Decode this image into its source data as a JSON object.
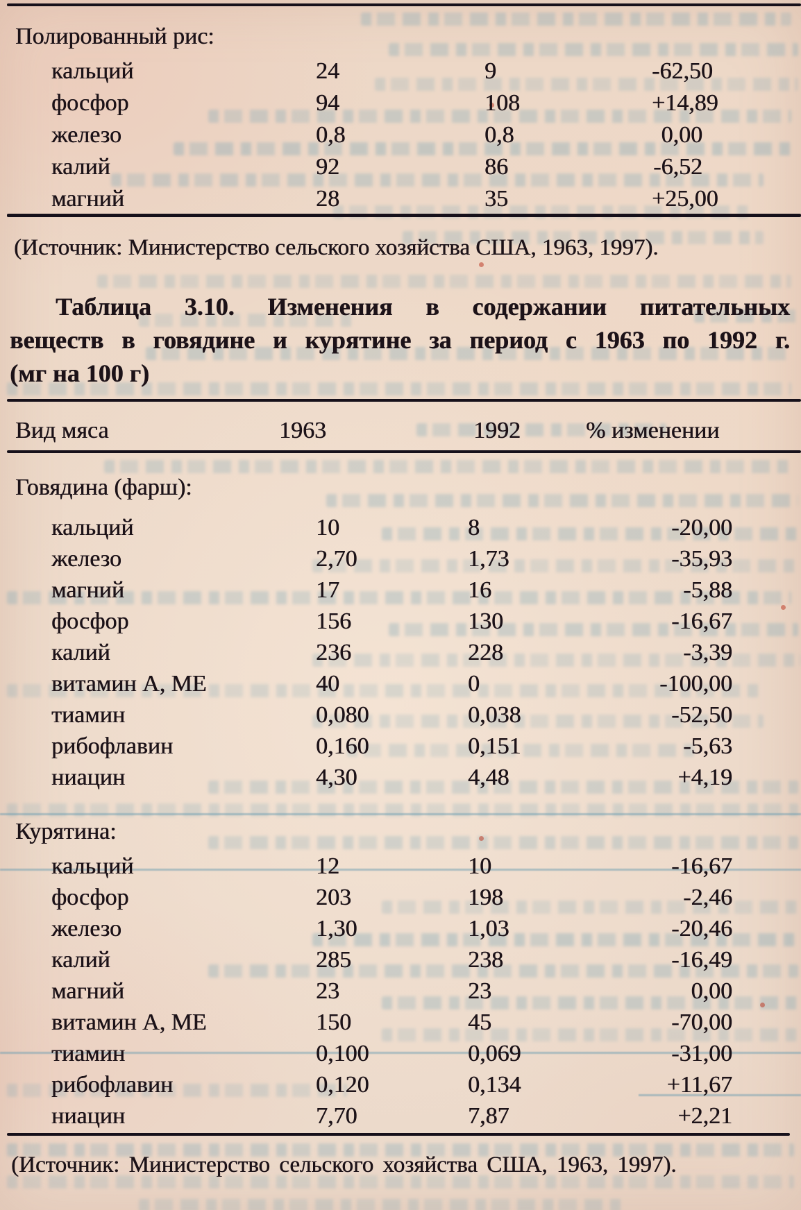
{
  "rice_table": {
    "section_label": "Полированный рис:",
    "rows": [
      {
        "label": "кальций",
        "y1963": "24",
        "y1992": "9",
        "change": "-62,50"
      },
      {
        "label": "фосфор",
        "y1963": "94",
        "y1992": "108",
        "change": "+14,89"
      },
      {
        "label": "железо",
        "y1963": "0,8",
        "y1992": "0,8",
        "change": "0,00"
      },
      {
        "label": "калий",
        "y1963": "92",
        "y1992": "86",
        "change": "-6,52"
      },
      {
        "label": "магний",
        "y1963": "28",
        "y1992": "35",
        "change": "+25,00"
      }
    ]
  },
  "source_note_top": "(Источник: Министерство сельского хозяйства США, 1963, 1997).",
  "table_3_10": {
    "title_lines": [
      "Таблица 3.10. Изменения в содержании питательных",
      "веществ в говядине и курятине за период с 1963 по 1992 г.",
      "(мг на 100 г)"
    ],
    "columns": {
      "kind": "Вид мяса",
      "y1963": "1963",
      "y1992": "1992",
      "change": "% изменении"
    },
    "beef": {
      "section_label": "Говядина (фарш):",
      "rows": [
        {
          "label": "кальций",
          "y1963": "10",
          "y1992": "8",
          "change": "-20,00"
        },
        {
          "label": "железо",
          "y1963": "2,70",
          "y1992": "1,73",
          "change": "-35,93"
        },
        {
          "label": "магний",
          "y1963": "17",
          "y1992": "16",
          "change": "-5,88"
        },
        {
          "label": "фосфор",
          "y1963": "156",
          "y1992": "130",
          "change": "-16,67"
        },
        {
          "label": "калий",
          "y1963": "236",
          "y1992": "228",
          "change": "-3,39"
        },
        {
          "label": "витамин А, МЕ",
          "y1963": "40",
          "y1992": "0",
          "change": "-100,00"
        },
        {
          "label": "тиамин",
          "y1963": "0,080",
          "y1992": "0,038",
          "change": "-52,50"
        },
        {
          "label": "рибофлавин",
          "y1963": "0,160",
          "y1992": "0,151",
          "change": "-5,63"
        },
        {
          "label": "ниацин",
          "y1963": "4,30",
          "y1992": "4,48",
          "change": "+4,19"
        }
      ]
    },
    "chicken": {
      "section_label": "Курятина:",
      "rows": [
        {
          "label": "кальций",
          "y1963": "12",
          "y1992": "10",
          "change": "-16,67"
        },
        {
          "label": "фосфор",
          "y1963": "203",
          "y1992": "198",
          "change": "-2,46"
        },
        {
          "label": "железо",
          "y1963": "1,30",
          "y1992": "1,03",
          "change": "-20,46"
        },
        {
          "label": "калий",
          "y1963": "285",
          "y1992": "238",
          "change": "-16,49"
        },
        {
          "label": "магний",
          "y1963": "23",
          "y1992": "23",
          "change": "0,00"
        },
        {
          "label": "витамин А, МЕ",
          "y1963": "150",
          "y1992": "45",
          "change": "-70,00"
        },
        {
          "label": "тиамин",
          "y1963": "0,100",
          "y1992": "0,069",
          "change": "-31,00"
        },
        {
          "label": "рибофлавин",
          "y1963": "0,120",
          "y1992": "0,134",
          "change": "+11,67"
        },
        {
          "label": "ниацин",
          "y1963": "7,70",
          "y1992": "7,87",
          "change": "+2,21"
        }
      ]
    }
  },
  "source_note_bottom": "(Источник: Министерство сельского хозяйства США, 1963, 1997)."
}
